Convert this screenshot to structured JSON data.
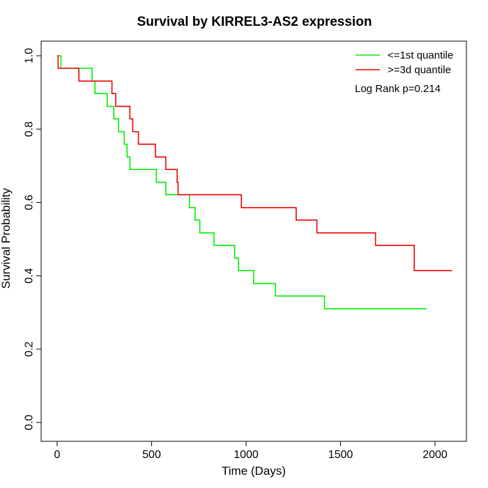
{
  "chart_data": {
    "type": "line",
    "title": "Survival by KIRREL3-AS2 expression",
    "xlabel": "Time (Days)",
    "ylabel": "Survival Probability",
    "xlim": [
      0,
      2000
    ],
    "ylim": [
      0,
      1
    ],
    "x_ticks": [
      "0",
      "500",
      "1000",
      "1500",
      "2000"
    ],
    "y_ticks": [
      "0.0",
      "0.2",
      "0.4",
      "0.6",
      "0.8",
      "1.0"
    ],
    "x_tick_values": [
      0,
      500,
      1000,
      1500,
      2000
    ],
    "y_tick_values": [
      0,
      0.2,
      0.4,
      0.6,
      0.8,
      1.0
    ],
    "grid": false,
    "legend_position": "top-right",
    "annotation": "Log Rank p=0.214",
    "series": [
      {
        "name": "<=1st quantile",
        "color": "#00ee00",
        "step_points": [
          [
            0,
            1.0
          ],
          [
            20,
            0.966
          ],
          [
            185,
            0.931
          ],
          [
            200,
            0.897
          ],
          [
            265,
            0.862
          ],
          [
            300,
            0.828
          ],
          [
            325,
            0.793
          ],
          [
            355,
            0.759
          ],
          [
            370,
            0.724
          ],
          [
            385,
            0.69
          ],
          [
            525,
            0.655
          ],
          [
            575,
            0.621
          ],
          [
            700,
            0.586
          ],
          [
            730,
            0.552
          ],
          [
            755,
            0.517
          ],
          [
            830,
            0.483
          ],
          [
            940,
            0.448
          ],
          [
            960,
            0.414
          ],
          [
            1040,
            0.379
          ],
          [
            1155,
            0.345
          ],
          [
            1415,
            0.31
          ],
          [
            1955,
            0.31
          ]
        ]
      },
      {
        "name": ">=3d quantile",
        "color": "#ee0000",
        "step_points": [
          [
            0,
            1.0
          ],
          [
            5,
            0.966
          ],
          [
            115,
            0.931
          ],
          [
            290,
            0.897
          ],
          [
            310,
            0.862
          ],
          [
            385,
            0.828
          ],
          [
            400,
            0.793
          ],
          [
            430,
            0.759
          ],
          [
            520,
            0.724
          ],
          [
            575,
            0.69
          ],
          [
            635,
            0.655
          ],
          [
            640,
            0.621
          ],
          [
            975,
            0.586
          ],
          [
            1265,
            0.552
          ],
          [
            1375,
            0.517
          ],
          [
            1685,
            0.483
          ],
          [
            1890,
            0.414
          ],
          [
            2090,
            0.414
          ]
        ]
      }
    ]
  }
}
